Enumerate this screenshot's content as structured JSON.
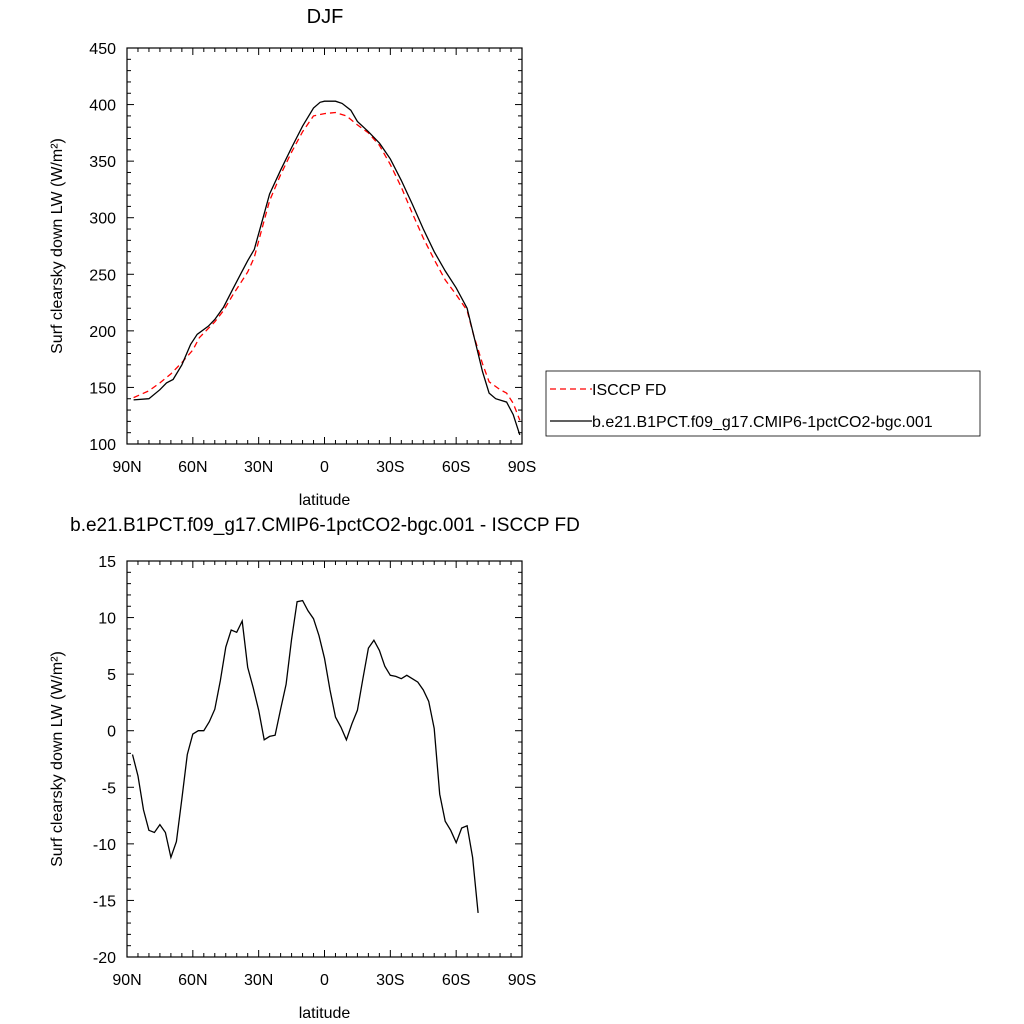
{
  "chart_data": [
    {
      "type": "line",
      "title": "DJF",
      "xlabel": "latitude",
      "ylabel": "Surf clearsky down LW (W/m²)",
      "xlim": [
        -90,
        90
      ],
      "ylim": [
        100,
        450
      ],
      "x_ticks": [
        {
          "value": -90,
          "label": "90N"
        },
        {
          "value": -60,
          "label": "60N"
        },
        {
          "value": -30,
          "label": "30N"
        },
        {
          "value": 0,
          "label": "0"
        },
        {
          "value": 30,
          "label": "30S"
        },
        {
          "value": 60,
          "label": "60S"
        },
        {
          "value": 90,
          "label": "90S"
        }
      ],
      "y_ticks": [
        100,
        150,
        200,
        250,
        300,
        350,
        400,
        450
      ],
      "grid": false,
      "legend_position": "outside-right",
      "series": [
        {
          "name": "ISCCP FD",
          "color": "#ff0000",
          "dash": "dashed",
          "points": [
            [
              -87,
              141
            ],
            [
              -80,
              147
            ],
            [
              -75,
              154
            ],
            [
              -70,
              162
            ],
            [
              -65,
              172
            ],
            [
              -60,
              183
            ],
            [
              -57,
              194
            ],
            [
              -53,
              202
            ],
            [
              -50,
              208
            ],
            [
              -46,
              218
            ],
            [
              -42,
              231
            ],
            [
              -38,
              243
            ],
            [
              -35,
              252
            ],
            [
              -32,
              265
            ],
            [
              -28,
              294
            ],
            [
              -25,
              315
            ],
            [
              -20,
              338
            ],
            [
              -15,
              358
            ],
            [
              -10,
              376
            ],
            [
              -5,
              390
            ],
            [
              0,
              392
            ],
            [
              5,
              393
            ],
            [
              10,
              390
            ],
            [
              15,
              382
            ],
            [
              20,
              375
            ],
            [
              25,
              364
            ],
            [
              30,
              347
            ],
            [
              35,
              327
            ],
            [
              40,
              304
            ],
            [
              45,
              282
            ],
            [
              50,
              263
            ],
            [
              55,
              245
            ],
            [
              60,
              232
            ],
            [
              65,
              218
            ],
            [
              68,
              196
            ],
            [
              72,
              171
            ],
            [
              75,
              155
            ],
            [
              80,
              148
            ],
            [
              83,
              145
            ],
            [
              86,
              136
            ],
            [
              89,
              121
            ]
          ]
        },
        {
          "name": "b.e21.B1PCT.f09_g17.CMIP6-1pctCO2-bgc.001",
          "color": "#000000",
          "dash": "solid",
          "points": [
            [
              -87,
              139
            ],
            [
              -80,
              140
            ],
            [
              -75,
              148
            ],
            [
              -72,
              154
            ],
            [
              -69,
              157
            ],
            [
              -65,
              170
            ],
            [
              -61,
              188
            ],
            [
              -58,
              197
            ],
            [
              -53,
              204
            ],
            [
              -50,
              210
            ],
            [
              -46,
              221
            ],
            [
              -42,
              236
            ],
            [
              -38,
              251
            ],
            [
              -35,
              262
            ],
            [
              -32,
              272
            ],
            [
              -28,
              300
            ],
            [
              -25,
              321
            ],
            [
              -20,
              342
            ],
            [
              -15,
              362
            ],
            [
              -10,
              381
            ],
            [
              -5,
              397
            ],
            [
              -2,
              402
            ],
            [
              0,
              403
            ],
            [
              5,
              403
            ],
            [
              8,
              401
            ],
            [
              12,
              395
            ],
            [
              15,
              385
            ],
            [
              20,
              376
            ],
            [
              25,
              366
            ],
            [
              30,
              352
            ],
            [
              35,
              333
            ],
            [
              40,
              312
            ],
            [
              45,
              290
            ],
            [
              50,
              270
            ],
            [
              55,
              253
            ],
            [
              60,
              238
            ],
            [
              65,
              220
            ],
            [
              68,
              196
            ],
            [
              72,
              164
            ],
            [
              75,
              145
            ],
            [
              78,
              140
            ],
            [
              83,
              137
            ],
            [
              86,
              126
            ],
            [
              89,
              108
            ]
          ]
        }
      ]
    },
    {
      "type": "line",
      "title": "b.e21.B1PCT.f09_g17.CMIP6-1pctCO2-bgc.001 - ISCCP FD",
      "xlabel": "latitude",
      "ylabel": "Surf clearsky down LW (W/m²)",
      "xlim": [
        -90,
        90
      ],
      "ylim": [
        -20,
        15
      ],
      "x_ticks": [
        {
          "value": -90,
          "label": "90N"
        },
        {
          "value": -60,
          "label": "60N"
        },
        {
          "value": -30,
          "label": "30N"
        },
        {
          "value": 0,
          "label": "0"
        },
        {
          "value": 30,
          "label": "30S"
        },
        {
          "value": 60,
          "label": "60S"
        },
        {
          "value": 90,
          "label": "90S"
        }
      ],
      "y_ticks": [
        -20,
        -15,
        -10,
        -5,
        0,
        5,
        10,
        15
      ],
      "grid": false,
      "series": [
        {
          "color": "#000000",
          "dash": "solid",
          "points": [
            [
              -87.5,
              -2.1
            ],
            [
              -85,
              -4
            ],
            [
              -82.5,
              -7
            ],
            [
              -80,
              -8.8
            ],
            [
              -77.5,
              -9
            ],
            [
              -75,
              -8.3
            ],
            [
              -72.5,
              -9
            ],
            [
              -70,
              -11.2
            ],
            [
              -67.5,
              -9.8
            ],
            [
              -65,
              -6
            ],
            [
              -62.5,
              -2.1
            ],
            [
              -60,
              -0.3
            ],
            [
              -57.5,
              0
            ],
            [
              -55,
              0
            ],
            [
              -52.5,
              0.8
            ],
            [
              -50,
              1.9
            ],
            [
              -47.5,
              4.4
            ],
            [
              -45,
              7.4
            ],
            [
              -42.5,
              8.9
            ],
            [
              -40,
              8.7
            ],
            [
              -37.5,
              9.7
            ],
            [
              -35,
              5.6
            ],
            [
              -32.5,
              3.8
            ],
            [
              -30,
              1.8
            ],
            [
              -27.5,
              -0.8
            ],
            [
              -25,
              -0.5
            ],
            [
              -22.5,
              -0.4
            ],
            [
              -20,
              1.9
            ],
            [
              -17.5,
              4.1
            ],
            [
              -15,
              8.1
            ],
            [
              -12.5,
              11.4
            ],
            [
              -10,
              11.5
            ],
            [
              -7.5,
              10.6
            ],
            [
              -5,
              9.9
            ],
            [
              -2.5,
              8.4
            ],
            [
              0,
              6.4
            ],
            [
              2.5,
              3.6
            ],
            [
              5,
              1.2
            ],
            [
              7.5,
              0.3
            ],
            [
              10,
              -0.8
            ],
            [
              12.5,
              0.6
            ],
            [
              15,
              1.8
            ],
            [
              17.5,
              4.6
            ],
            [
              20,
              7.3
            ],
            [
              22.5,
              8
            ],
            [
              25,
              7.1
            ],
            [
              27.5,
              5.7
            ],
            [
              30,
              4.9
            ],
            [
              32.5,
              4.8
            ],
            [
              35,
              4.6
            ],
            [
              37.5,
              4.9
            ],
            [
              40,
              4.6
            ],
            [
              42.5,
              4.3
            ],
            [
              45,
              3.6
            ],
            [
              47.5,
              2.6
            ],
            [
              50,
              0.2
            ],
            [
              52.5,
              -5.6
            ],
            [
              55,
              -8
            ],
            [
              57.5,
              -8.8
            ],
            [
              60,
              -9.9
            ],
            [
              62.5,
              -8.6
            ],
            [
              65,
              -8.4
            ],
            [
              67.5,
              -11.2
            ],
            [
              70,
              -16.1
            ]
          ]
        }
      ]
    }
  ]
}
